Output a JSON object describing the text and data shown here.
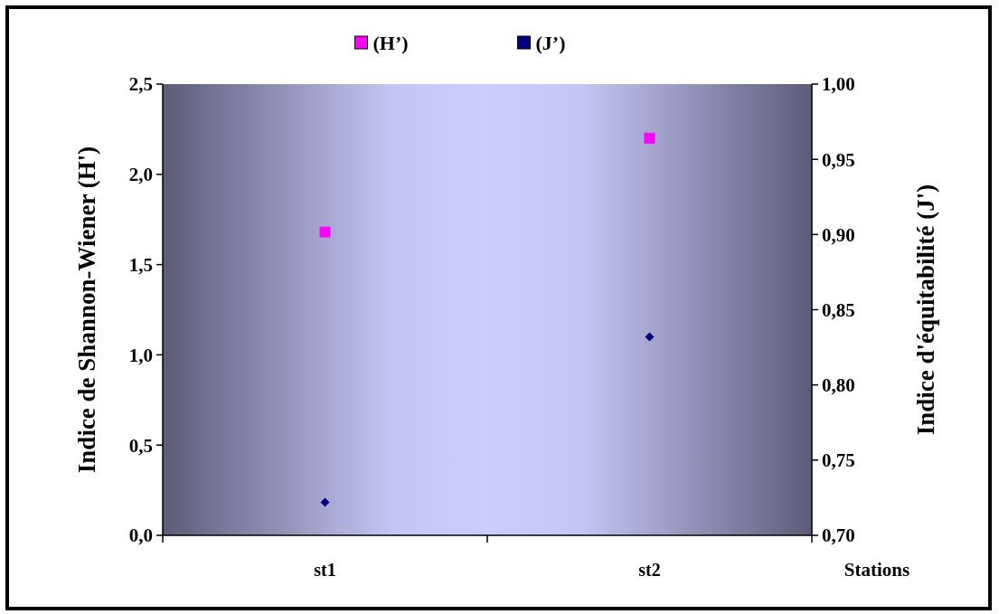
{
  "chart_data": {
    "type": "scatter",
    "xlabel": "Stations",
    "ylabel": "Indice de Shannon-Wiener (H')",
    "y2label": "Indice d'équitabilité (J')",
    "categories": [
      "st1",
      "st2"
    ],
    "series": [
      {
        "name": "(H’)",
        "color": "#ff00ff",
        "values": [
          1.68,
          2.2
        ],
        "marker": "square"
      },
      {
        "name": "(J’)",
        "color": "#000080",
        "values": [
          0.722,
          0.832
        ],
        "marker": "diamond",
        "axis": "y2"
      }
    ],
    "ylim": [
      0,
      2.5
    ],
    "yticks": [
      {
        "value": 0,
        "label": "0,0"
      },
      {
        "value": 0.5,
        "label": "0,5"
      },
      {
        "value": 1,
        "label": "1,0"
      },
      {
        "value": 1.5,
        "label": "1,5"
      },
      {
        "value": 2,
        "label": "2,0"
      },
      {
        "value": 2.5,
        "label": "2,5"
      }
    ],
    "y2lim": [
      0.7,
      1.0
    ],
    "y2ticks": [
      {
        "value": 0.7,
        "label": "0,70"
      },
      {
        "value": 0.75,
        "label": "0,75"
      },
      {
        "value": 0.8,
        "label": "0,80"
      },
      {
        "value": 0.85,
        "label": "0,85"
      },
      {
        "value": 0.9,
        "label": "0,90"
      },
      {
        "value": 0.95,
        "label": "0,95"
      },
      {
        "value": 1.0,
        "label": "1,00"
      }
    ],
    "legend": "top",
    "grid": false
  }
}
